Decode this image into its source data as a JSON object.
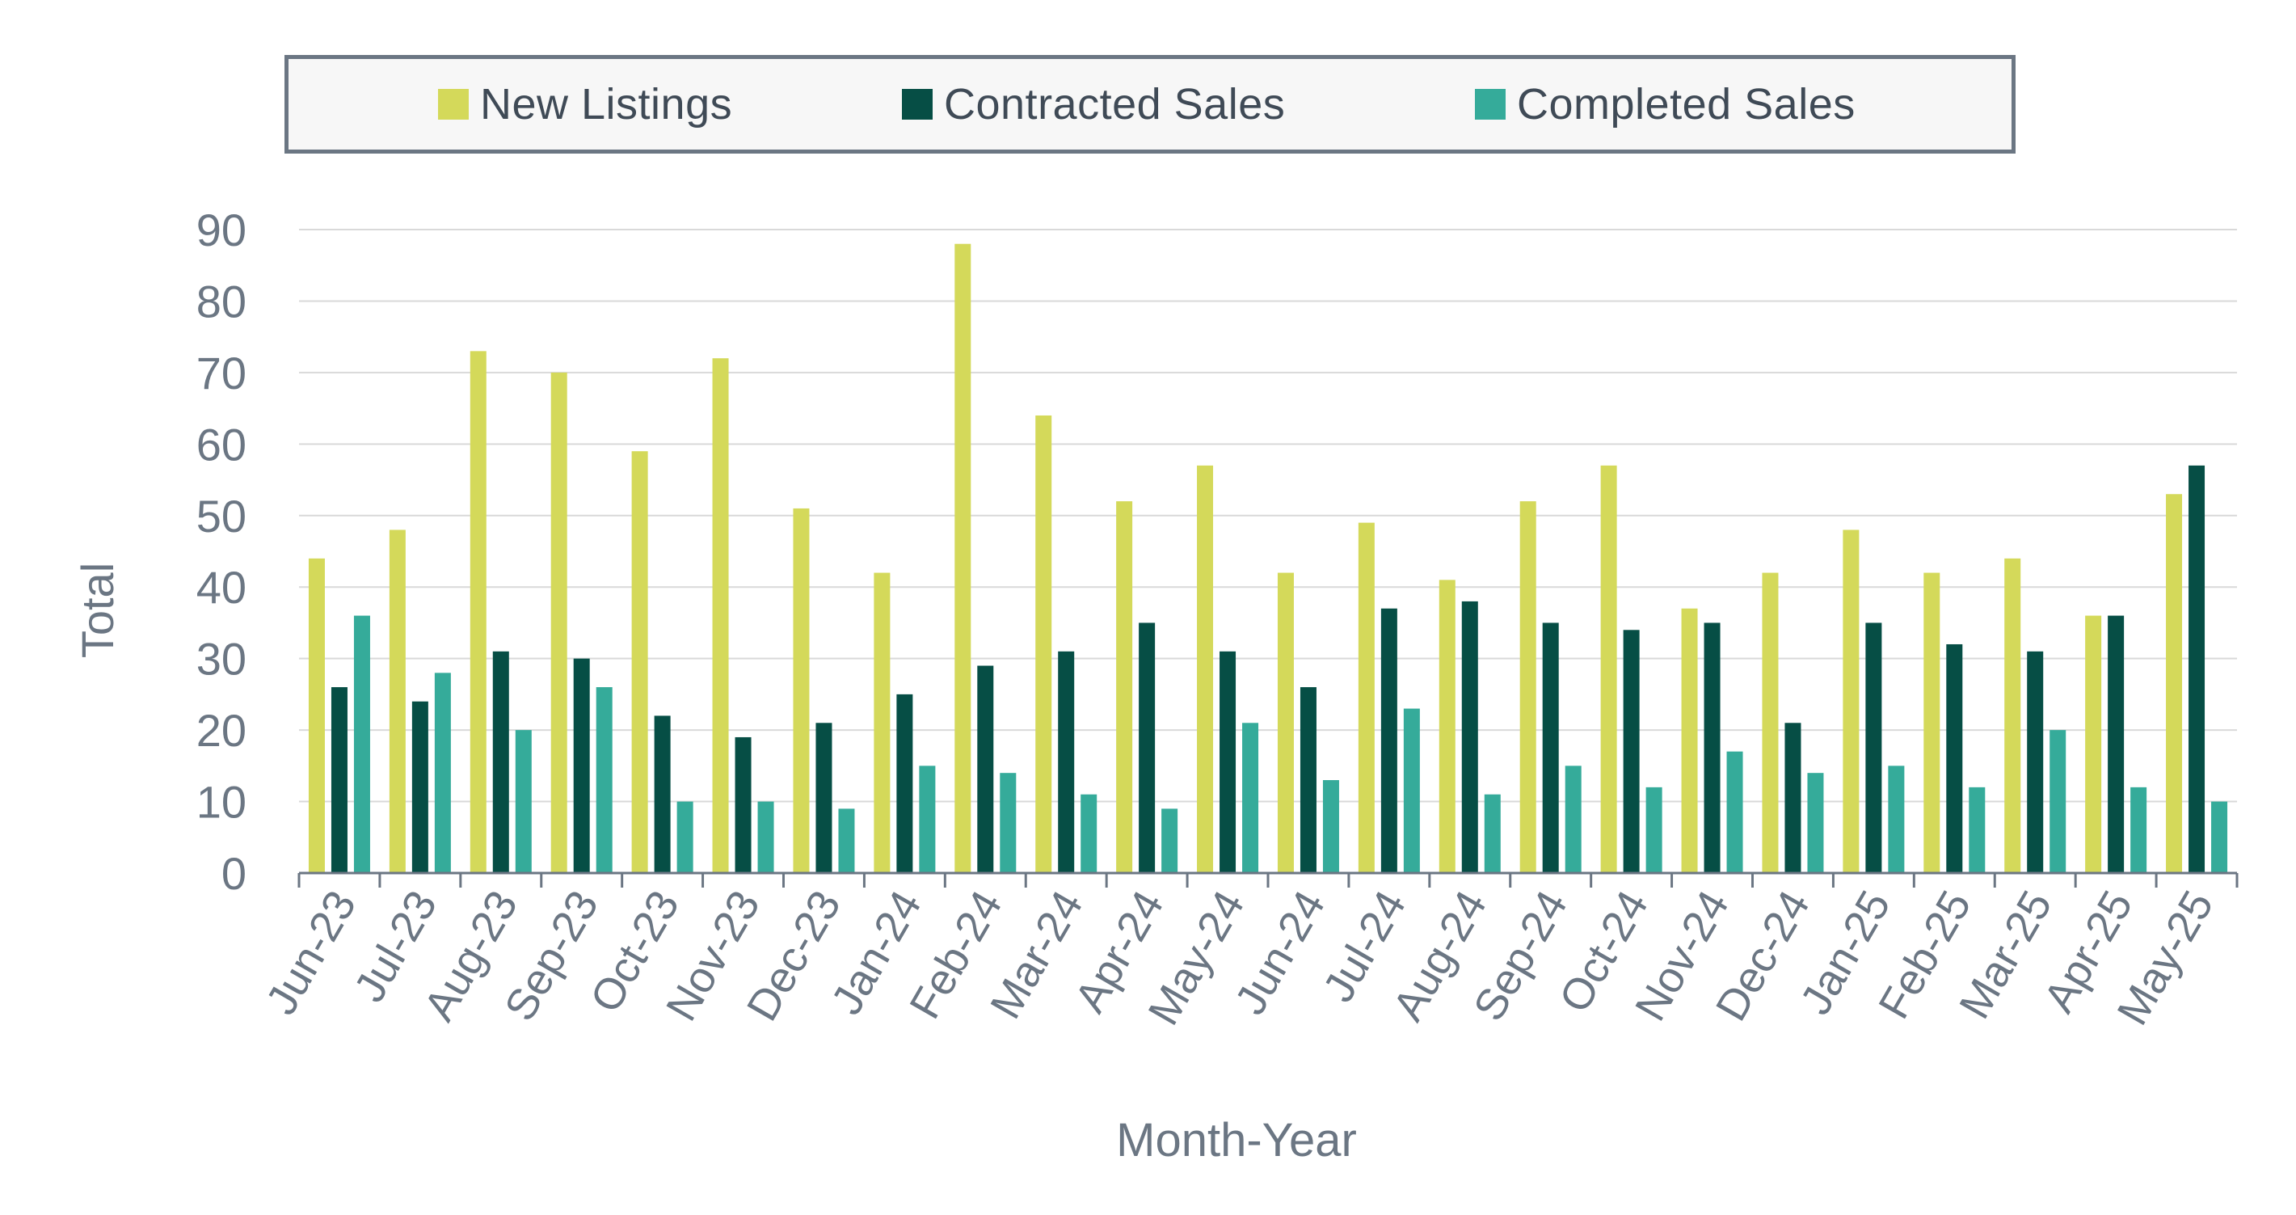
{
  "chart_data": {
    "type": "bar",
    "title": "",
    "xlabel": "Month-Year",
    "ylabel": "Total",
    "ylim": [
      0,
      90
    ],
    "yticks": [
      0,
      10,
      20,
      30,
      40,
      50,
      60,
      70,
      80,
      90
    ],
    "grid": true,
    "legend_position": "top",
    "categories": [
      "Jun-23",
      "Jul-23",
      "Aug-23",
      "Sep-23",
      "Oct-23",
      "Nov-23",
      "Dec-23",
      "Jan-24",
      "Feb-24",
      "Mar-24",
      "Apr-24",
      "May-24",
      "Jun-24",
      "Jul-24",
      "Aug-24",
      "Sep-24",
      "Oct-24",
      "Nov-24",
      "Dec-24",
      "Jan-25",
      "Feb-25",
      "Mar-25",
      "Apr-25",
      "May-25"
    ],
    "series": [
      {
        "name": "New Listings",
        "color": "#d4d95a",
        "values": [
          44,
          48,
          73,
          70,
          59,
          72,
          51,
          42,
          88,
          64,
          52,
          57,
          42,
          49,
          41,
          52,
          57,
          37,
          42,
          48,
          42,
          44,
          36,
          53
        ]
      },
      {
        "name": "Contracted Sales",
        "color": "#064e45",
        "values": [
          26,
          24,
          31,
          30,
          22,
          19,
          21,
          25,
          29,
          31,
          35,
          31,
          26,
          37,
          38,
          35,
          34,
          35,
          21,
          35,
          32,
          31,
          36,
          57
        ]
      },
      {
        "name": "Completed Sales",
        "color": "#35ab9a",
        "values": [
          36,
          28,
          20,
          26,
          10,
          10,
          9,
          15,
          14,
          11,
          9,
          21,
          13,
          23,
          11,
          15,
          12,
          17,
          14,
          15,
          12,
          20,
          12,
          10
        ]
      }
    ]
  }
}
